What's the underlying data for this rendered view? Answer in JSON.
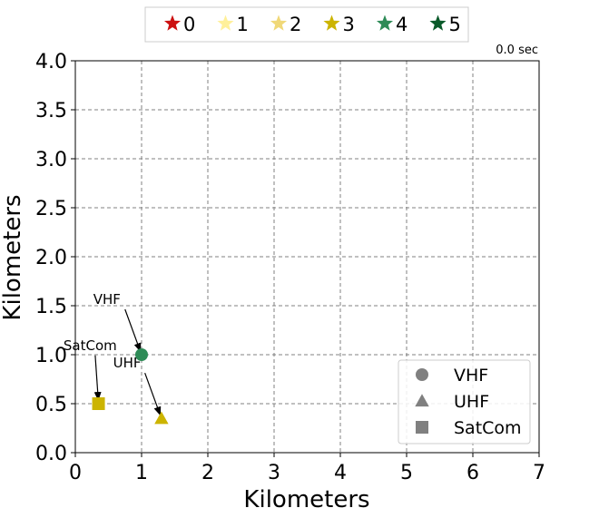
{
  "chart_data": {
    "type": "scatter",
    "xlabel": "Kilometers",
    "ylabel": "Kilometers",
    "xlim": [
      0,
      7
    ],
    "ylim": [
      0,
      4
    ],
    "x_ticks": [
      "0",
      "1",
      "2",
      "3",
      "4",
      "5",
      "6",
      "7"
    ],
    "y_ticks": [
      "0.0",
      "0.5",
      "1.0",
      "1.5",
      "2.0",
      "2.5",
      "3.0",
      "3.5",
      "4.0"
    ],
    "grid": true,
    "time_label": "0.0 sec",
    "colors": {
      "level_0": "#cc1111",
      "level_1": "#fff09a",
      "level_2": "#f0d878",
      "level_3": "#ccb400",
      "level_4": "#2e8b57",
      "level_5": "#0a5a2a"
    },
    "color_legend": {
      "placement": "top-center",
      "entries": [
        {
          "label": "0",
          "color": "#cc1111",
          "icon": "star-icon"
        },
        {
          "label": "1",
          "color": "#fff09a",
          "icon": "star-icon"
        },
        {
          "label": "2",
          "color": "#f0d878",
          "icon": "star-icon"
        },
        {
          "label": "3",
          "color": "#ccb400",
          "icon": "star-icon"
        },
        {
          "label": "4",
          "color": "#2e8b57",
          "icon": "star-icon"
        },
        {
          "label": "5",
          "color": "#0a5a2a",
          "icon": "star-icon"
        }
      ]
    },
    "marker_legend": {
      "placement": "lower-right",
      "entries": [
        {
          "label": "VHF",
          "marker": "circle"
        },
        {
          "label": "UHF",
          "marker": "triangle"
        },
        {
          "label": "SatCom",
          "marker": "square"
        }
      ]
    },
    "points": [
      {
        "name": "VHF",
        "x": 1.0,
        "y": 1.0,
        "marker": "circle",
        "color": "#2e8b57",
        "label_x": 0.75,
        "label_y": 1.5
      },
      {
        "name": "UHF",
        "x": 1.3,
        "y": 0.35,
        "marker": "triangle",
        "color": "#ccb400",
        "label_x": 1.05,
        "label_y": 0.85
      },
      {
        "name": "SatCom",
        "x": 0.35,
        "y": 0.5,
        "marker": "square",
        "color": "#ccb400",
        "label_x": 0.3,
        "label_y": 1.03
      }
    ]
  }
}
